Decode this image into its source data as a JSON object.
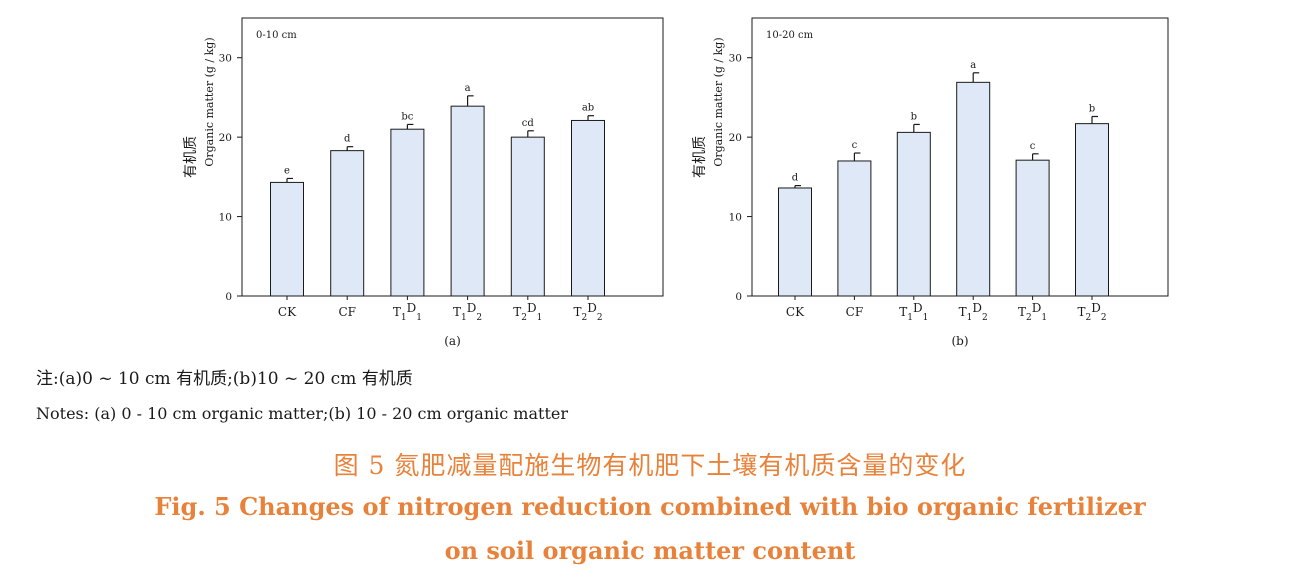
{
  "chart_data": [
    {
      "type": "bar",
      "panel_label": "0-10 cm",
      "sublabel": "(a)",
      "ylabel_cn": "有机质",
      "ylabel_en": "Organic matter (g / kg)",
      "ylim": [
        0,
        35
      ],
      "yticks": [
        0,
        10,
        20,
        30
      ],
      "categories": [
        {
          "base": "CK",
          "s1": "",
          "mid": "",
          "s2": ""
        },
        {
          "base": "CF",
          "s1": "",
          "mid": "",
          "s2": ""
        },
        {
          "base": "T",
          "s1": "1",
          "mid": "D",
          "s2": "1"
        },
        {
          "base": "T",
          "s1": "1",
          "mid": "D",
          "s2": "2"
        },
        {
          "base": "T",
          "s1": "2",
          "mid": "D",
          "s2": "1"
        },
        {
          "base": "T",
          "s1": "2",
          "mid": "D",
          "s2": "2"
        }
      ],
      "values": [
        14.3,
        18.3,
        21.0,
        23.9,
        20.0,
        22.1
      ],
      "errors": [
        0.5,
        0.5,
        0.6,
        1.3,
        0.8,
        0.6
      ],
      "letters": [
        "e",
        "d",
        "bc",
        "a",
        "cd",
        "ab"
      ]
    },
    {
      "type": "bar",
      "panel_label": "10-20 cm",
      "sublabel": "(b)",
      "ylabel_cn": "有机质",
      "ylabel_en": "Organic matter (g / kg)",
      "ylim": [
        0,
        35
      ],
      "yticks": [
        0,
        10,
        20,
        30
      ],
      "categories": [
        {
          "base": "CK",
          "s1": "",
          "mid": "",
          "s2": ""
        },
        {
          "base": "CF",
          "s1": "",
          "mid": "",
          "s2": ""
        },
        {
          "base": "T",
          "s1": "1",
          "mid": "D",
          "s2": "1"
        },
        {
          "base": "T",
          "s1": "1",
          "mid": "D",
          "s2": "2"
        },
        {
          "base": "T",
          "s1": "2",
          "mid": "D",
          "s2": "1"
        },
        {
          "base": "T",
          "s1": "2",
          "mid": "D",
          "s2": "2"
        }
      ],
      "values": [
        13.6,
        17.0,
        20.6,
        26.9,
        17.1,
        21.7
      ],
      "errors": [
        0.3,
        1.0,
        1.0,
        1.2,
        0.8,
        0.9
      ],
      "letters": [
        "d",
        "c",
        "b",
        "a",
        "c",
        "b"
      ]
    }
  ],
  "colors": {
    "bar_fill": "#dfe8f7",
    "bar_stroke": "#1a1a1a",
    "caption": "#e8823a"
  },
  "notes": {
    "cn": "注:(a)0 ~ 10 cm 有机质;(b)10 ~ 20 cm 有机质",
    "en": "Notes: (a) 0 - 10 cm organic matter;(b) 10 - 20 cm organic matter"
  },
  "caption": {
    "cn": "图 5   氮肥减量配施生物有机肥下土壤有机质含量的变化",
    "en_line1": "Fig. 5    Changes of nitrogen reduction combined with bio organic fertilizer",
    "en_line2": "on soil organic matter content"
  }
}
